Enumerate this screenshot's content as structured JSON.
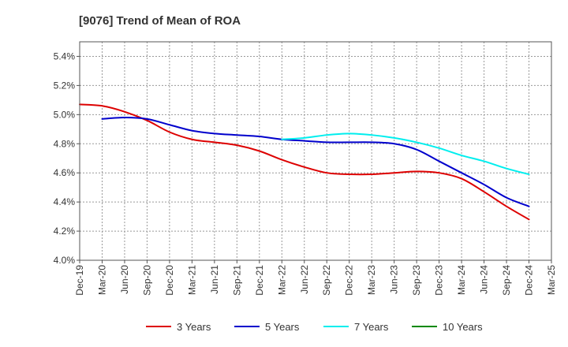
{
  "chart_data": {
    "type": "line",
    "title": "[9076]  Trend of Mean of ROA",
    "xlabel": "",
    "ylabel": "",
    "ylim": [
      4.0,
      5.5
    ],
    "y_ticks": [
      "4.0%",
      "4.2%",
      "4.4%",
      "4.6%",
      "4.8%",
      "5.0%",
      "5.2%",
      "5.4%"
    ],
    "y_tick_values": [
      4.0,
      4.2,
      4.4,
      4.6,
      4.8,
      5.0,
      5.2,
      5.4
    ],
    "categories": [
      "Dec-19",
      "Mar-20",
      "Jun-20",
      "Sep-20",
      "Dec-20",
      "Mar-21",
      "Jun-21",
      "Sep-21",
      "Dec-21",
      "Mar-22",
      "Jun-22",
      "Sep-22",
      "Dec-22",
      "Mar-23",
      "Jun-23",
      "Sep-23",
      "Dec-23",
      "Mar-24",
      "Jun-24",
      "Sep-24",
      "Dec-24",
      "Mar-25"
    ],
    "grid": true,
    "legend_position": "bottom",
    "series": [
      {
        "name": "3 Years",
        "color": "#dd0000",
        "values": [
          5.07,
          5.06,
          5.02,
          4.96,
          4.88,
          4.83,
          4.81,
          4.79,
          4.75,
          4.69,
          4.64,
          4.6,
          4.59,
          4.59,
          4.6,
          4.61,
          4.6,
          4.56,
          4.47,
          4.37,
          4.28,
          null
        ]
      },
      {
        "name": "5 Years",
        "color": "#0000cc",
        "values": [
          null,
          4.97,
          4.98,
          4.97,
          4.93,
          4.89,
          4.87,
          4.86,
          4.85,
          4.83,
          4.82,
          4.81,
          4.81,
          4.81,
          4.8,
          4.76,
          4.68,
          4.6,
          4.52,
          4.43,
          4.37,
          null
        ]
      },
      {
        "name": "7 Years",
        "color": "#00eeee",
        "values": [
          null,
          null,
          null,
          null,
          null,
          null,
          null,
          null,
          null,
          4.83,
          4.84,
          4.86,
          4.87,
          4.86,
          4.84,
          4.81,
          4.77,
          4.72,
          4.68,
          4.63,
          4.59,
          null
        ]
      },
      {
        "name": "10 Years",
        "color": "#008800",
        "values": [
          null,
          null,
          null,
          null,
          null,
          null,
          null,
          null,
          null,
          null,
          null,
          null,
          null,
          null,
          null,
          null,
          null,
          null,
          null,
          null,
          null,
          null
        ]
      }
    ]
  }
}
